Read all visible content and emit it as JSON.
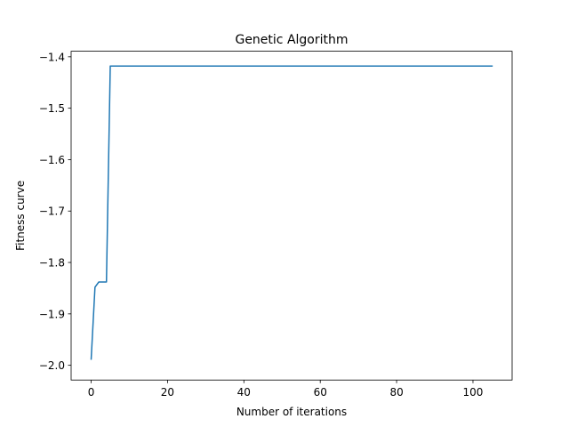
{
  "chart_data": {
    "type": "line",
    "title": "Genetic Algorithm",
    "xlabel": "Number of iterations",
    "ylabel": "Fitness curve",
    "xlim": [
      -5.25,
      110.25
    ],
    "ylim": [
      -2.02865,
      -1.3892
    ],
    "x_ticks": [
      0,
      20,
      40,
      60,
      80,
      100
    ],
    "y_ticks": [
      -2.0,
      -1.9,
      -1.8,
      -1.7,
      -1.6,
      -1.5,
      -1.4
    ],
    "x_tick_labels": [
      "0",
      "20",
      "40",
      "60",
      "80",
      "100"
    ],
    "y_tick_labels": [
      "−2.0",
      "−1.9",
      "−1.8",
      "−1.7",
      "−1.6",
      "−1.5",
      "−1.4"
    ],
    "grid": false,
    "legend": "none",
    "series": [
      {
        "color": "#1f77b4",
        "x": [
          0,
          1,
          2,
          3,
          4,
          5,
          6,
          105
        ],
        "y": [
          -1.988,
          -1.848,
          -1.838,
          -1.838,
          -1.838,
          -1.418,
          -1.418,
          -1.418
        ]
      }
    ]
  }
}
